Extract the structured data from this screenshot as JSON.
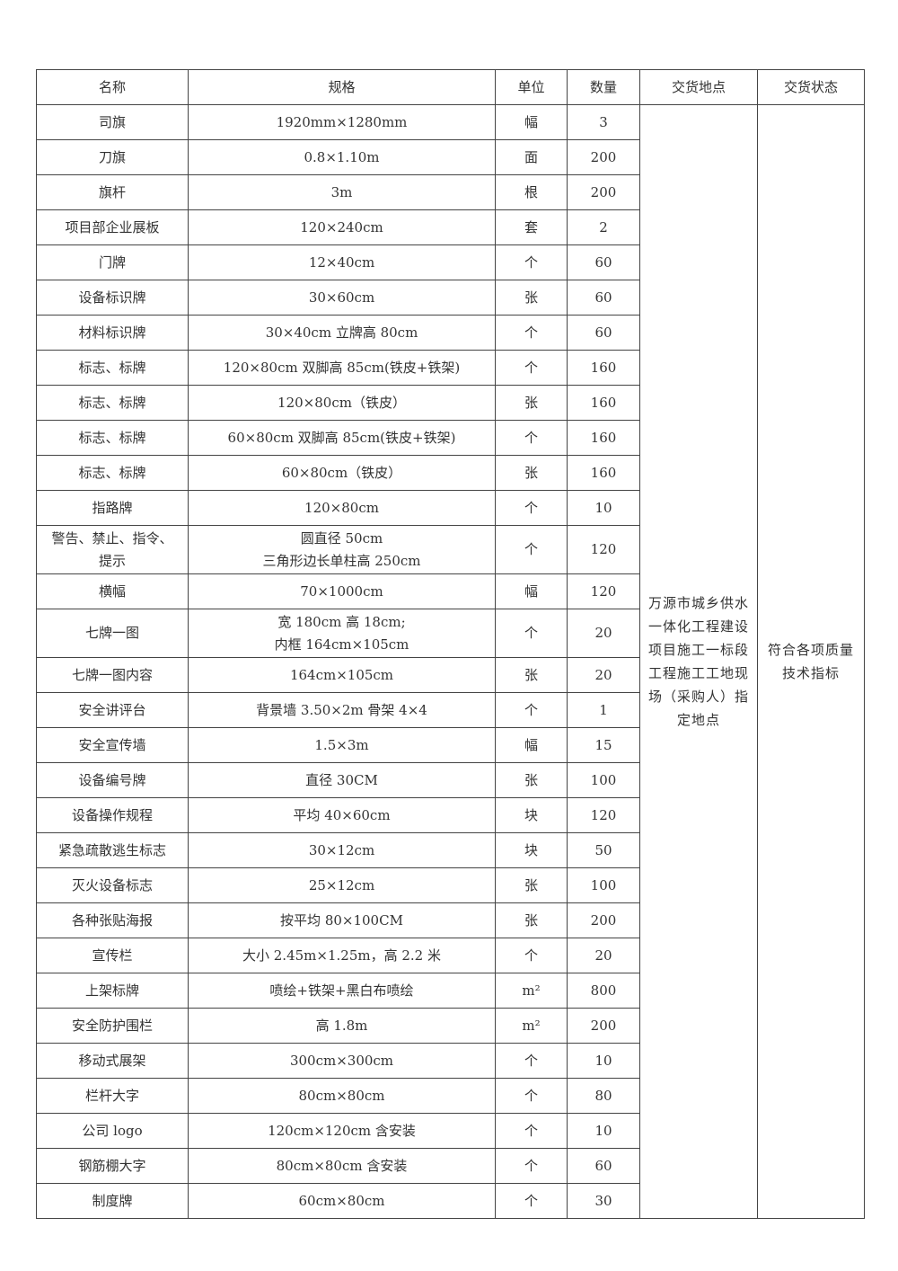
{
  "table": {
    "headers": [
      "名称",
      "规格",
      "单位",
      "数量",
      "交货地点",
      "交货状态"
    ],
    "delivery_location": "万源市城乡供水一体化工程建设项目施工一标段工程施工工地现场（采购人）指定地点",
    "delivery_status": "符合各项质量技术指标",
    "rows": [
      {
        "name": "司旗",
        "spec": "1920mm×1280mm",
        "unit": "幅",
        "qty": "3"
      },
      {
        "name": "刀旗",
        "spec": "0.8×1.10m",
        "unit": "面",
        "qty": "200"
      },
      {
        "name": "旗杆",
        "spec": "3m",
        "unit": "根",
        "qty": "200"
      },
      {
        "name": "项目部企业展板",
        "spec": "120×240cm",
        "unit": "套",
        "qty": "2"
      },
      {
        "name": "门牌",
        "spec": "12×40cm",
        "unit": "个",
        "qty": "60"
      },
      {
        "name": "设备标识牌",
        "spec": "30×60cm",
        "unit": "张",
        "qty": "60"
      },
      {
        "name": "材料标识牌",
        "spec": "30×40cm 立牌高 80cm",
        "unit": "个",
        "qty": "60"
      },
      {
        "name": "标志、标牌",
        "spec": "120×80cm 双脚高 85cm(铁皮+铁架)",
        "unit": "个",
        "qty": "160"
      },
      {
        "name": "标志、标牌",
        "spec": "120×80cm（铁皮）",
        "unit": "张",
        "qty": "160"
      },
      {
        "name": "标志、标牌",
        "spec": "60×80cm 双脚高 85cm(铁皮+铁架)",
        "unit": "个",
        "qty": "160"
      },
      {
        "name": "标志、标牌",
        "spec": "60×80cm（铁皮）",
        "unit": "张",
        "qty": "160"
      },
      {
        "name": "指路牌",
        "spec": "120×80cm",
        "unit": "个",
        "qty": "10"
      },
      {
        "name": "警告、禁止、指令、\n提示",
        "spec": "圆直径 50cm\n三角形边长单柱高 250cm",
        "unit": "个",
        "qty": "120"
      },
      {
        "name": "横幅",
        "spec": "70×1000cm",
        "unit": "幅",
        "qty": "120"
      },
      {
        "name": "七牌一图",
        "spec": "宽 180cm 高 18cm;\n内框 164cm×105cm",
        "unit": "个",
        "qty": "20"
      },
      {
        "name": "七牌一图内容",
        "spec": "164cm×105cm",
        "unit": "张",
        "qty": "20"
      },
      {
        "name": "安全讲评台",
        "spec": "背景墙 3.50×2m 骨架 4×4",
        "unit": "个",
        "qty": "1"
      },
      {
        "name": "安全宣传墙",
        "spec": "1.5×3m",
        "unit": "幅",
        "qty": "15"
      },
      {
        "name": "设备编号牌",
        "spec": "直径 30CM",
        "unit": "张",
        "qty": "100"
      },
      {
        "name": "设备操作规程",
        "spec": "平均 40×60cm",
        "unit": "块",
        "qty": "120"
      },
      {
        "name": "紧急疏散逃生标志",
        "spec": "30×12cm",
        "unit": "块",
        "qty": "50"
      },
      {
        "name": "灭火设备标志",
        "spec": "25×12cm",
        "unit": "张",
        "qty": "100"
      },
      {
        "name": "各种张贴海报",
        "spec": "按平均 80×100CM",
        "unit": "张",
        "qty": "200"
      },
      {
        "name": "宣传栏",
        "spec": "大小 2.45m×1.25m，高 2.2 米",
        "unit": "个",
        "qty": "20"
      },
      {
        "name": "上架标牌",
        "spec": "喷绘+铁架+黑白布喷绘",
        "unit": "m²",
        "qty": "800"
      },
      {
        "name": "安全防护围栏",
        "spec": "高 1.8m",
        "unit": "m²",
        "qty": "200"
      },
      {
        "name": "移动式展架",
        "spec": "300cm×300cm",
        "unit": "个",
        "qty": "10"
      },
      {
        "name": "栏杆大字",
        "spec": "80cm×80cm",
        "unit": "个",
        "qty": "80"
      },
      {
        "name": "公司 logo",
        "spec": "120cm×120cm 含安装",
        "unit": "个",
        "qty": "10"
      },
      {
        "name": "钢筋棚大字",
        "spec": "80cm×80cm 含安装",
        "unit": "个",
        "qty": "60"
      },
      {
        "name": "制度牌",
        "spec": "60cm×80cm",
        "unit": "个",
        "qty": "30"
      }
    ]
  }
}
